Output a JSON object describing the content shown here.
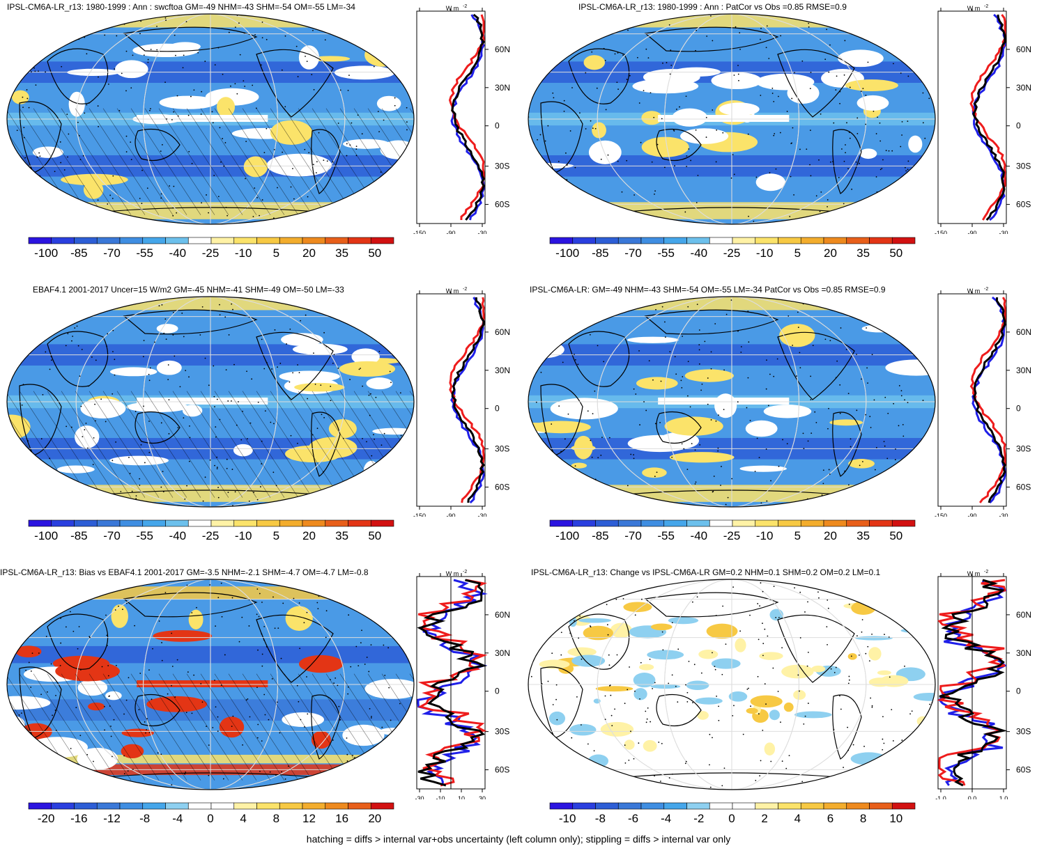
{
  "footer": "hatching = diffs > internal var+obs uncertainty (left column only); stippling = diffs > internal var only",
  "zonal_unit": "W m",
  "zonal_unit_sup": "-2",
  "lat_labels": [
    "60N",
    "30N",
    "0",
    "30S",
    "60S"
  ],
  "colors": {
    "blue_line": "#1f1fe8",
    "red_line": "#ee1c1c",
    "black_line": "#000000",
    "land_line": "#000000"
  },
  "panels": [
    {
      "id": "model",
      "title": "IPSL-CM6A-LR_r13: 1980-1999 : Ann : swcftoa GM=-49 NHM=-43 SHM=-54 OM=-55 LM=-34",
      "palette": "main",
      "hatched": true,
      "cb_labels": [
        "-100",
        "-85",
        "-70",
        "-55",
        "-40",
        "-25",
        "-10",
        "5",
        "20",
        "35",
        "50"
      ],
      "zonal_ticks": [
        "-150",
        "-90",
        "-30"
      ]
    },
    {
      "id": "model-patcor",
      "title": "IPSL-CM6A-LR_r13: 1980-1999 : Ann : PatCor vs Obs =0.85 RMSE=0.9",
      "palette": "main",
      "hatched": false,
      "cb_labels": [
        "-100",
        "-85",
        "-70",
        "-55",
        "-40",
        "-25",
        "-10",
        "5",
        "20",
        "35",
        "50"
      ],
      "zonal_ticks": [
        "-150",
        "-90",
        "-30"
      ]
    },
    {
      "id": "obs",
      "title": "EBAF4.1 2001-2017 Uncer=15 W/m2 GM=-45 NHM=-41 SHM=-49 OM=-50 LM=-33",
      "palette": "main",
      "hatched": true,
      "cb_labels": [
        "-100",
        "-85",
        "-70",
        "-55",
        "-40",
        "-25",
        "-10",
        "5",
        "20",
        "35",
        "50"
      ],
      "zonal_ticks": [
        "-150",
        "-90",
        "-30"
      ]
    },
    {
      "id": "ensemble",
      "title": "IPSL-CM6A-LR: GM=-49 NHM=-43 SHM=-54 OM=-55 LM=-34 PatCor vs Obs =0.85 RMSE=0.9",
      "palette": "main",
      "hatched": false,
      "cb_labels": [
        "-100",
        "-85",
        "-70",
        "-55",
        "-40",
        "-25",
        "-10",
        "5",
        "20",
        "35",
        "50"
      ],
      "zonal_ticks": [
        "-150",
        "-90",
        "-30"
      ]
    },
    {
      "id": "bias",
      "title": "IPSL-CM6A-LR_r13: Bias vs EBAF4.1 2001-2017 GM=-3.5 NHM=-2.1 SHM=-4.7 OM=-4.7 LM=-0.8",
      "palette": "diff",
      "hatched": true,
      "cb_labels": [
        "-20",
        "-16",
        "-12",
        "-8",
        "-4",
        "0",
        "4",
        "8",
        "12",
        "16",
        "20"
      ],
      "zonal_ticks": [
        "-30",
        "-10",
        "10",
        "30"
      ]
    },
    {
      "id": "change",
      "title": "IPSL-CM6A-LR_r13: Change vs IPSL-CM6A-LR GM=0.2 NHM=0.1 SHM=0.2 OM=0.2 LM=0.1",
      "palette": "diff",
      "hatched": false,
      "cb_labels": [
        "-10",
        "-8",
        "-6",
        "-4",
        "-2",
        "0",
        "2",
        "4",
        "6",
        "8",
        "10"
      ],
      "zonal_ticks": [
        "-1.0",
        "0.0",
        "1.0"
      ]
    }
  ]
}
